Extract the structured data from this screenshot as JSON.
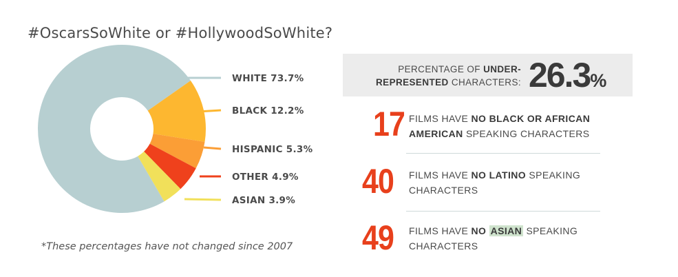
{
  "title": "#OscarsSoWhite or #HollywoodSoWhite?",
  "footnote": "*These percentages have not changed since 2007",
  "chart_data": {
    "type": "pie",
    "donut": true,
    "categories": [
      "WHITE",
      "BLACK",
      "HISPANIC",
      "OTHER",
      "ASIAN"
    ],
    "values": [
      73.7,
      12.2,
      5.3,
      4.9,
      3.9
    ],
    "labels": [
      "WHITE 73.7%",
      "BLACK 12.2%",
      "HISPANIC 5.3%",
      "OTHER 4.9%",
      "ASIAN 3.9%"
    ],
    "colors": [
      "#b7cfd1",
      "#fdb730",
      "#fb9e36",
      "#ef411c",
      "#f1e05a"
    ],
    "legend_position": "right"
  },
  "underrepresented": {
    "label_line1_a": "PERCENTAGE OF ",
    "label_line1_b": "UNDER-",
    "label_line2_a": "REPRESENTED",
    "label_line2_b": " CHARACTERS:",
    "value": "26.3",
    "unit": "%"
  },
  "stats": [
    {
      "number": "17",
      "pre": "FILMS HAVE ",
      "bold1": "NO BLACK OR AFRICAN",
      "bold2": "AMERICAN",
      "post": " SPEAKING CHARACTERS"
    },
    {
      "number": "40",
      "pre": "FILMS HAVE ",
      "bold1": "NO LATINO",
      "post": " SPEAKING",
      "line2": "CHARACTERS"
    },
    {
      "number": "49",
      "pre": "FILMS HAVE ",
      "bold1": "NO ",
      "highlight": "ASIAN",
      "post": " SPEAKING",
      "line2": "CHARACTERS"
    }
  ],
  "accent_color": "#e8401c"
}
